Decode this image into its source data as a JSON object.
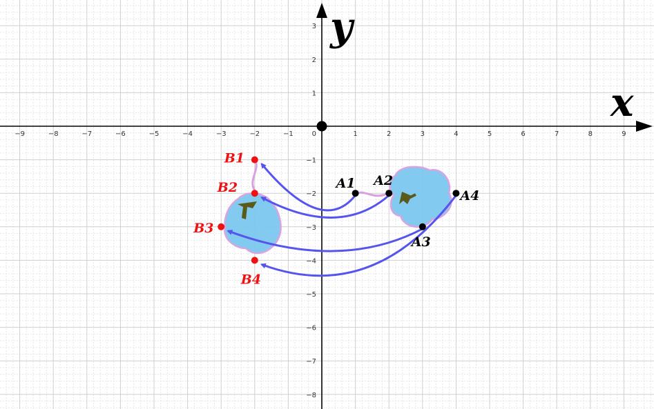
{
  "axes": {
    "x_label": "x",
    "y_label": "y",
    "x_range": [
      -9.5,
      9.5
    ],
    "y_range": [
      -8.5,
      3.5
    ],
    "x_ticks": [
      -9,
      -8,
      -7,
      -6,
      -5,
      -4,
      -3,
      -2,
      -1,
      1,
      2,
      3,
      4,
      5,
      6,
      7,
      8,
      9
    ],
    "y_ticks": [
      3,
      2,
      1,
      -1,
      -2,
      -3,
      -4,
      -5,
      -6,
      -7,
      -8
    ],
    "origin_label": "0",
    "grid": true
  },
  "points_a": [
    {
      "name": "A1",
      "x": 1,
      "y": -2
    },
    {
      "name": "A2",
      "x": 2,
      "y": -2
    },
    {
      "name": "A3",
      "x": 3,
      "y": -3
    },
    {
      "name": "A4",
      "x": 4,
      "y": -2
    }
  ],
  "points_b": [
    {
      "name": "B1",
      "x": -2,
      "y": -1
    },
    {
      "name": "B2",
      "x": -2,
      "y": -2
    },
    {
      "name": "B3",
      "x": -3,
      "y": -3
    },
    {
      "name": "B4",
      "x": -2,
      "y": -4
    }
  ],
  "mappings": [
    {
      "from": "A1",
      "to": "B1"
    },
    {
      "from": "A2",
      "to": "B2"
    },
    {
      "from": "A3",
      "to": "B3"
    },
    {
      "from": "A4",
      "to": "B4"
    }
  ],
  "colors": {
    "a_points": "#000000",
    "b_points": "#ee1111",
    "arrows": "#5555ee",
    "shape_fill": "#7cc8ef",
    "shape_edge": "#d8a0e0",
    "leaf": "#5a5a1a"
  }
}
